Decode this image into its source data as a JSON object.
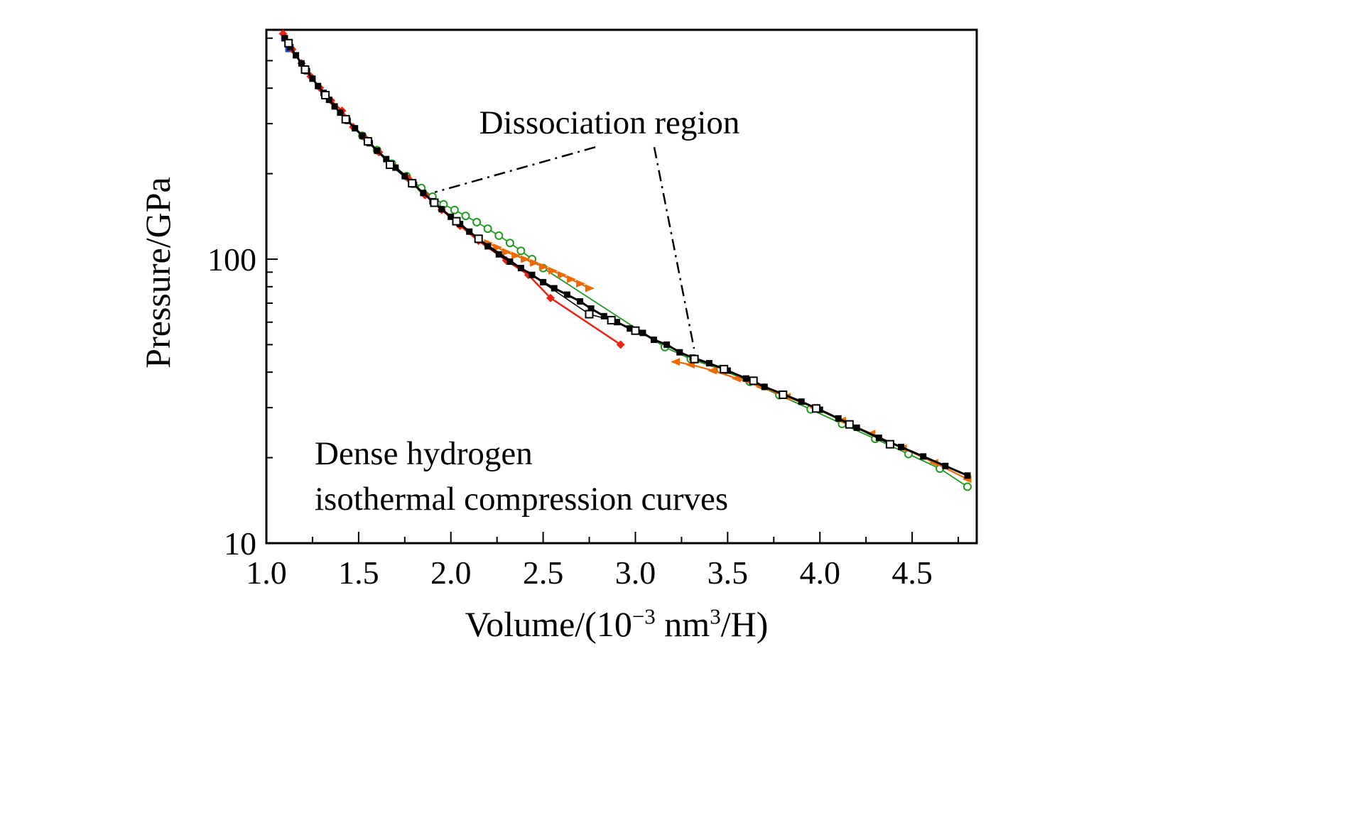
{
  "page": {
    "background": "#ffffff"
  },
  "labels": {
    "y_axis": "Pressure/GPa",
    "x_axis_full": "Volume/(10⁻³ nm³/H)",
    "x_axis_parts": {
      "pre": "Volume/(10",
      "sup1": "−3",
      "mid": " nm",
      "sup2": "3",
      "post": "/H)"
    },
    "annotation": "Dissociation region",
    "note_line1": "Dense hydrogen",
    "note_line2": "isothermal compression curves"
  },
  "chart_data": {
    "type": "line",
    "title": "",
    "xlabel": "Volume/(10⁻³ nm³/H)",
    "ylabel": "Pressure/GPa",
    "x_scale": "linear",
    "y_scale": "log",
    "x_range": [
      1.0,
      4.85
    ],
    "y_range": [
      10,
      642
    ],
    "grid": false,
    "legend": "none",
    "x_ticks_major": [
      1.0,
      1.5,
      2.0,
      2.5,
      3.0,
      3.5,
      4.0,
      4.5
    ],
    "x_tick_labels": [
      "1.0",
      "1.5",
      "2.0",
      "2.5",
      "3.0",
      "3.5",
      "4.0",
      "4.5"
    ],
    "x_ticks_minor": [
      1.25,
      1.75,
      2.25,
      2.75,
      3.25,
      3.75,
      4.25,
      4.75
    ],
    "y_ticks_major": [
      10,
      100
    ],
    "y_tick_labels": [
      "10",
      "100"
    ],
    "y_ticks_minor": [
      20,
      30,
      40,
      50,
      60,
      70,
      80,
      90,
      200,
      300,
      400,
      500,
      600
    ],
    "annotation": {
      "label": "Dissociation region",
      "leader_lines": [
        [
          [
            2.783,
            248
          ],
          [
            1.912,
            172
          ]
        ],
        [
          [
            3.102,
            248
          ],
          [
            3.318,
            48.4
          ]
        ]
      ]
    },
    "note": [
      "Dense hydrogen",
      "isothermal compression curves"
    ],
    "series": [
      {
        "name": "green-open-circles",
        "color": "#1f9a1f",
        "marker": "open-circle",
        "marker_size": 10,
        "line_width": 1.8,
        "points": [
          [
            1.52,
            272
          ],
          [
            1.6,
            242
          ],
          [
            1.68,
            217
          ],
          [
            1.76,
            196
          ],
          [
            1.84,
            178
          ],
          [
            1.9,
            166
          ],
          [
            1.96,
            156
          ],
          [
            2.02,
            149
          ],
          [
            2.08,
            142
          ],
          [
            2.14,
            135
          ],
          [
            2.2,
            128
          ],
          [
            2.26,
            121
          ],
          [
            2.32,
            114
          ],
          [
            2.38,
            107
          ],
          [
            2.44,
            100
          ],
          [
            2.5,
            93
          ],
          [
            3.16,
            49
          ],
          [
            3.3,
            44.5
          ],
          [
            3.46,
            41
          ],
          [
            3.62,
            37
          ],
          [
            3.78,
            33.2
          ],
          [
            3.95,
            29.6
          ],
          [
            4.12,
            26.3
          ],
          [
            4.3,
            23.3
          ],
          [
            4.48,
            20.6
          ],
          [
            4.65,
            18.3
          ],
          [
            4.8,
            15.8
          ]
        ]
      },
      {
        "name": "orange-triangles-upper",
        "color": "#ee6a00",
        "marker": "triangle-right",
        "marker_size": 11,
        "line_width": 2.2,
        "points": [
          [
            2.2,
            114
          ],
          [
            2.25,
            110
          ],
          [
            2.3,
            106
          ],
          [
            2.35,
            103
          ],
          [
            2.4,
            100
          ],
          [
            2.45,
            97
          ],
          [
            2.5,
            94
          ],
          [
            2.55,
            91
          ],
          [
            2.6,
            88
          ],
          [
            2.65,
            85
          ],
          [
            2.7,
            82
          ],
          [
            2.75,
            79
          ]
        ]
      },
      {
        "name": "orange-triangles-lower",
        "color": "#ee6a00",
        "marker": "triangle-left",
        "marker_size": 11,
        "line_width": 2.2,
        "points": [
          [
            3.22,
            43.5
          ],
          [
            3.3,
            42.5
          ],
          [
            3.42,
            40.5
          ],
          [
            3.55,
            38
          ],
          [
            3.68,
            35.5
          ],
          [
            3.82,
            32.8
          ],
          [
            3.97,
            30
          ],
          [
            4.12,
            27
          ],
          [
            4.28,
            24.3
          ],
          [
            4.45,
            21.6
          ],
          [
            4.62,
            19.2
          ],
          [
            4.8,
            16.8
          ]
        ]
      },
      {
        "name": "blue-squares",
        "color": "#2244bb",
        "marker": "square",
        "marker_size": 8,
        "line_width": 1.5,
        "points": [
          [
            1.095,
            598
          ],
          [
            1.118,
            548
          ]
        ]
      },
      {
        "name": "red-diamonds",
        "color": "#ee2211",
        "marker": "diamond",
        "marker_size": 10,
        "line_width": 2.5,
        "points": [
          [
            1.09,
            622
          ],
          [
            1.14,
            548
          ],
          [
            1.19,
            489
          ],
          [
            1.24,
            440
          ],
          [
            1.29,
            401
          ],
          [
            1.35,
            362
          ],
          [
            1.41,
            333
          ],
          [
            1.47,
            292
          ],
          [
            1.54,
            265
          ],
          [
            1.61,
            238
          ],
          [
            1.69,
            212
          ],
          [
            1.77,
            192
          ],
          [
            1.86,
            168
          ],
          [
            1.95,
            149
          ],
          [
            2.05,
            131
          ],
          [
            2.15,
            116
          ],
          [
            2.3,
            99
          ],
          [
            2.42,
            88
          ],
          [
            2.54,
            73
          ],
          [
            2.92,
            50
          ]
        ]
      },
      {
        "name": "black-filled-squares",
        "color": "#000000",
        "marker": "square",
        "marker_size": 9,
        "line_width": 3,
        "points": [
          [
            1.1,
            600
          ],
          [
            1.13,
            558
          ],
          [
            1.16,
            522
          ],
          [
            1.19,
            489
          ],
          [
            1.22,
            459
          ],
          [
            1.25,
            432
          ],
          [
            1.28,
            407
          ],
          [
            1.31,
            385
          ],
          [
            1.34,
            364
          ],
          [
            1.37,
            345
          ],
          [
            1.4,
            328
          ],
          [
            1.44,
            307
          ],
          [
            1.48,
            289
          ],
          [
            1.52,
            272
          ],
          [
            1.56,
            256
          ],
          [
            1.6,
            241
          ],
          [
            1.65,
            225
          ],
          [
            1.7,
            210
          ],
          [
            1.75,
            196
          ],
          [
            1.8,
            183
          ],
          [
            1.85,
            171
          ],
          [
            1.9,
            160
          ],
          [
            1.95,
            150
          ],
          [
            2.0,
            141
          ],
          [
            2.05,
            133
          ],
          [
            2.1,
            125
          ],
          [
            2.15,
            118
          ],
          [
            2.2,
            111
          ],
          [
            2.26,
            104
          ],
          [
            2.32,
            98
          ],
          [
            2.38,
            93
          ],
          [
            2.44,
            88
          ],
          [
            2.5,
            83
          ],
          [
            2.56,
            79
          ],
          [
            2.63,
            75
          ],
          [
            2.7,
            71
          ],
          [
            2.76,
            67
          ],
          [
            2.83,
            63
          ],
          [
            2.9,
            60
          ],
          [
            2.97,
            57
          ],
          [
            3.04,
            55
          ],
          [
            3.1,
            52
          ],
          [
            3.17,
            50
          ],
          [
            3.24,
            47
          ],
          [
            3.31,
            45
          ],
          [
            3.4,
            43
          ],
          [
            3.5,
            40.5
          ],
          [
            3.6,
            38
          ],
          [
            3.7,
            35.5
          ],
          [
            3.8,
            33.5
          ],
          [
            3.9,
            31.5
          ],
          [
            4.0,
            29.5
          ],
          [
            4.1,
            27.5
          ],
          [
            4.2,
            25.5
          ],
          [
            4.32,
            23.5
          ],
          [
            4.44,
            21.8
          ],
          [
            4.56,
            20.2
          ],
          [
            4.68,
            18.7
          ],
          [
            4.8,
            17.3
          ]
        ]
      },
      {
        "name": "open-squares",
        "color": "#000000",
        "marker": "open-square",
        "marker_size": 10,
        "line_width": 1.5,
        "points": [
          [
            1.12,
            576
          ],
          [
            1.21,
            465
          ],
          [
            1.32,
            378
          ],
          [
            1.43,
            311
          ],
          [
            1.55,
            260
          ],
          [
            1.67,
            215
          ],
          [
            1.79,
            185
          ],
          [
            1.91,
            158
          ],
          [
            2.03,
            136
          ],
          [
            2.15,
            118
          ],
          [
            2.75,
            64
          ],
          [
            2.87,
            61
          ],
          [
            3.0,
            56
          ],
          [
            3.32,
            44.5
          ],
          [
            3.48,
            41
          ],
          [
            3.64,
            37.3
          ],
          [
            3.8,
            33.3
          ],
          [
            3.98,
            29.8
          ],
          [
            4.16,
            26.2
          ],
          [
            4.38,
            22.3
          ]
        ]
      }
    ]
  }
}
